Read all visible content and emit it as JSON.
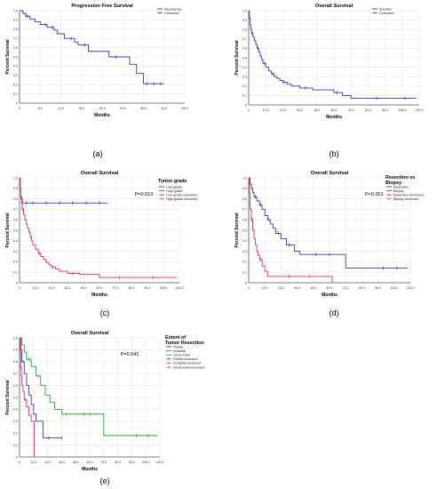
{
  "chart_data": [
    {
      "type": "line",
      "title": "Progression Free Survival",
      "xlabel": "Months",
      "ylabel": "Percent Survival",
      "caption": "(a)",
      "xlim": [
        0,
        48
      ],
      "ylim": [
        0,
        1
      ],
      "grid": true,
      "legend_placement": "top-right",
      "x_ticks": [
        "0",
        "6.0",
        "12.0",
        "18.0",
        "24.0",
        "30.0",
        "36.0",
        "42.0",
        "48.0"
      ],
      "y_ticks": [
        "0",
        "0.1",
        "0.2",
        "0.3",
        "0.4",
        "0.5",
        "0.6",
        "0.7",
        "0.8",
        "0.9",
        "1.0"
      ],
      "legend": [
        "Recurrence",
        "Censored"
      ],
      "annotation": "",
      "series": [
        {
          "name": "Recurrence",
          "color": "#3a3aa0",
          "x": [
            0,
            1,
            1.8,
            3,
            4.5,
            6,
            8,
            10,
            11,
            13,
            16,
            17,
            20,
            26,
            32,
            34,
            36,
            42
          ],
          "y": [
            1.0,
            0.97,
            0.94,
            0.91,
            0.88,
            0.85,
            0.82,
            0.79,
            0.75,
            0.7,
            0.66,
            0.63,
            0.56,
            0.5,
            0.42,
            0.32,
            0.21,
            0.21
          ],
          "censored_x": [
            2.2,
            7.5,
            9.5,
            15,
            19,
            28,
            37,
            39,
            41
          ]
        }
      ]
    },
    {
      "type": "line",
      "title": "Overall Survival",
      "xlabel": "Months",
      "ylabel": "Percent Survival",
      "caption": "(b)",
      "xlim": [
        0,
        120
      ],
      "ylim": [
        0,
        1
      ],
      "grid": true,
      "legend_placement": "top-right",
      "x_ticks": [
        "0",
        "12.0",
        "24.0",
        "36.0",
        "48.0",
        "60.0",
        "72.0",
        "84.0",
        "96.0",
        "108.0",
        "120.0"
      ],
      "y_ticks": [
        "0",
        "0.1",
        "0.2",
        "0.3",
        "0.4",
        "0.5",
        "0.6",
        "0.7",
        "0.8",
        "0.9",
        "1.0"
      ],
      "legend": [
        "Survival",
        "Censored"
      ],
      "annotation": "",
      "series": [
        {
          "name": "Survival",
          "color": "#3a3aa0",
          "x": [
            0,
            0.5,
            1,
            1.5,
            2,
            3,
            4,
            5,
            6,
            7,
            8,
            9,
            10,
            12,
            14,
            16,
            18,
            20,
            22,
            24,
            27,
            30,
            36,
            45,
            60,
            66,
            72,
            118
          ],
          "y": [
            1.0,
            0.92,
            0.85,
            0.8,
            0.76,
            0.72,
            0.68,
            0.64,
            0.6,
            0.56,
            0.52,
            0.48,
            0.44,
            0.4,
            0.36,
            0.33,
            0.3,
            0.28,
            0.26,
            0.24,
            0.22,
            0.2,
            0.18,
            0.16,
            0.13,
            0.1,
            0.07,
            0.07
          ],
          "censored_x": [
            2.5,
            6.5,
            11,
            17,
            25,
            40,
            62,
            90,
            110
          ]
        }
      ]
    },
    {
      "type": "line",
      "title": "Overall Survival",
      "xlabel": "Months",
      "ylabel": "Percent Survival",
      "caption": "(c)",
      "xlim": [
        0,
        120
      ],
      "ylim": [
        0,
        1
      ],
      "grid": true,
      "legend_placement": "right",
      "x_ticks": [
        "0",
        "12.0",
        "24.0",
        "36.0",
        "48.0",
        "60.0",
        "72.0",
        "84.0",
        "96.0",
        "108.0",
        "120.0"
      ],
      "y_ticks": [
        "0",
        "0.1",
        "0.2",
        "0.3",
        "0.4",
        "0.5",
        "0.6",
        "0.7",
        "0.8",
        "0.9",
        "1.0"
      ],
      "legend_title": "Tumor grade",
      "legend": [
        "Low grade",
        "High grade",
        "Low grade-censored",
        "High grade-censored"
      ],
      "annotation": "P=0.013",
      "series": [
        {
          "name": "Low grade",
          "color": "#3a3aa0",
          "x": [
            0,
            0.5,
            1,
            2,
            66
          ],
          "y": [
            1.0,
            0.9,
            0.8,
            0.76,
            0.76
          ],
          "censored_x": [
            5,
            10,
            20,
            30,
            40,
            50,
            60
          ]
        },
        {
          "name": "High grade",
          "color": "#e0306a",
          "x": [
            0,
            0.5,
            1,
            1.5,
            2,
            3,
            4,
            5,
            6,
            7,
            8,
            9,
            10,
            12,
            14,
            16,
            18,
            20,
            22,
            24,
            27,
            30,
            36,
            45,
            60,
            118
          ],
          "y": [
            1.0,
            0.9,
            0.82,
            0.76,
            0.7,
            0.65,
            0.6,
            0.56,
            0.52,
            0.48,
            0.44,
            0.4,
            0.36,
            0.32,
            0.28,
            0.25,
            0.22,
            0.19,
            0.17,
            0.15,
            0.13,
            0.11,
            0.09,
            0.08,
            0.05,
            0.05
          ],
          "censored_x": [
            2.5,
            8,
            15,
            25,
            40,
            75,
            100
          ]
        }
      ]
    },
    {
      "type": "line",
      "title": "Overall Survival",
      "xlabel": "Months",
      "ylabel": "Percent Survival",
      "caption": "(d)",
      "xlim": [
        0,
        120
      ],
      "ylim": [
        0,
        1
      ],
      "grid": true,
      "legend_placement": "right",
      "x_ticks": [
        "0",
        "12.0",
        "24.0",
        "36.0",
        "48.0",
        "60.0",
        "72.0",
        "84.0",
        "96.0",
        "108.0",
        "120.0"
      ],
      "y_ticks": [
        "0",
        "0.1",
        "0.2",
        "0.3",
        "0.4",
        "0.5",
        "0.6",
        "0.7",
        "0.8",
        "0.9",
        "1.0"
      ],
      "legend_title": "Resection vs Biopsy",
      "legend": [
        "Resection",
        "Biopsy",
        "Resection-censored",
        "Biopsy-censored"
      ],
      "annotation": "P<0.001",
      "series": [
        {
          "name": "Resection",
          "color": "#3a3aa0",
          "x": [
            0,
            1,
            2,
            3,
            4,
            6,
            8,
            10,
            12,
            14,
            16,
            18,
            20,
            24,
            28,
            34,
            38,
            44,
            72,
            118
          ],
          "y": [
            1.0,
            0.94,
            0.9,
            0.86,
            0.82,
            0.78,
            0.74,
            0.7,
            0.64,
            0.6,
            0.56,
            0.52,
            0.47,
            0.42,
            0.36,
            0.3,
            0.27,
            0.27,
            0.14,
            0.14
          ],
          "censored_x": [
            5,
            9,
            15,
            22,
            30,
            50,
            60,
            100,
            110
          ]
        },
        {
          "name": "Biopsy",
          "color": "#e0306a",
          "x": [
            0,
            0.5,
            1,
            2,
            3,
            4,
            5,
            6,
            7,
            8,
            10,
            12,
            14,
            24,
            62
          ],
          "y": [
            1.0,
            0.85,
            0.7,
            0.6,
            0.5,
            0.42,
            0.36,
            0.3,
            0.26,
            0.22,
            0.16,
            0.11,
            0.06,
            0.06,
            0.0
          ],
          "censored_x": [
            2.5,
            9,
            30,
            45
          ]
        }
      ]
    },
    {
      "type": "line",
      "title": "Overall Survival",
      "xlabel": "Months",
      "ylabel": "Percent Survival",
      "caption": "(e)",
      "xlim": [
        0,
        120
      ],
      "ylim": [
        0,
        1
      ],
      "grid": true,
      "legend_placement": "right",
      "x_ticks": [
        "0",
        "12.0",
        "24.0",
        "36.0",
        "48.0",
        "60.0",
        "72.0",
        "84.0",
        "96.0",
        "108.0",
        "120.0"
      ],
      "y_ticks": [
        "0",
        "0.1",
        "0.2",
        "0.3",
        "0.4",
        "0.5",
        "0.6",
        "0.7",
        "0.8",
        "0.9",
        "1.0"
      ],
      "legend_title": "Extent of Tumor Resection",
      "legend": [
        "Partial",
        "Subtotal",
        "Gross-total",
        "Partial-censored",
        "Subtotal-censored",
        "Gross-total-censored"
      ],
      "annotation": "P=0.041",
      "series": [
        {
          "name": "Partial",
          "color": "#3a3aa0",
          "x": [
            0,
            1,
            2,
            4,
            6,
            8,
            10,
            12,
            14,
            20,
            30,
            36
          ],
          "y": [
            1.0,
            0.9,
            0.8,
            0.7,
            0.6,
            0.52,
            0.44,
            0.36,
            0.3,
            0.16,
            0.16,
            0.16
          ],
          "censored_x": [
            3,
            25,
            36
          ]
        },
        {
          "name": "Subtotal",
          "color": "#e0306a",
          "x": [
            0,
            0.5,
            1,
            1.5,
            2,
            3,
            4,
            6,
            8,
            10,
            12,
            12.5
          ],
          "y": [
            1.0,
            0.88,
            0.75,
            0.68,
            0.6,
            0.55,
            0.48,
            0.42,
            0.35,
            0.3,
            0.3,
            0.0
          ],
          "censored_x": [
            1.2,
            5
          ]
        },
        {
          "name": "Gross-total",
          "color": "#3b9a3b",
          "x": [
            0,
            2,
            4,
            6,
            10,
            14,
            18,
            22,
            26,
            30,
            36,
            48,
            72,
            118
          ],
          "y": [
            1.0,
            0.94,
            0.88,
            0.82,
            0.76,
            0.68,
            0.6,
            0.52,
            0.46,
            0.4,
            0.36,
            0.36,
            0.18,
            0.18
          ],
          "censored_x": [
            8,
            16,
            40,
            55,
            60,
            100,
            110
          ]
        }
      ]
    }
  ]
}
